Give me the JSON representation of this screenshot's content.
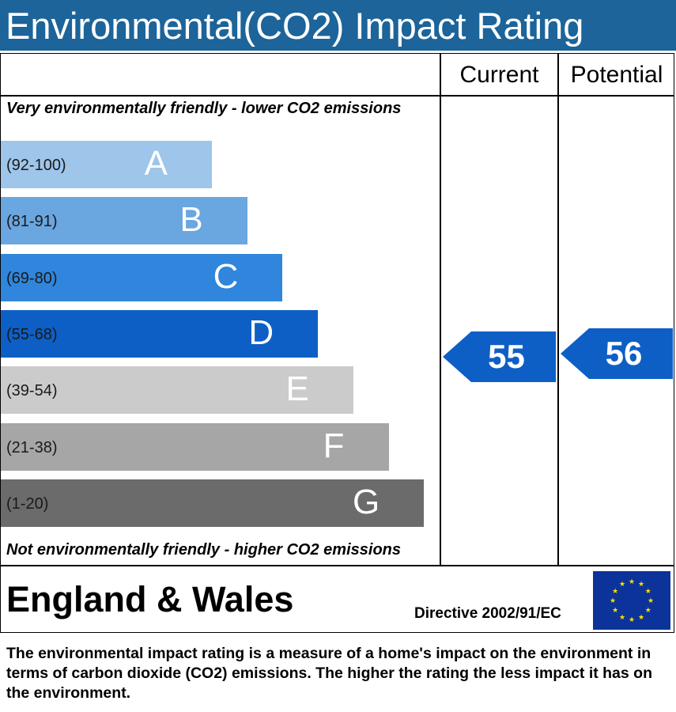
{
  "header": {
    "title": "Environmental(CO2) Impact Rating"
  },
  "columns": {
    "current": "Current",
    "potential": "Potential"
  },
  "edges": {
    "top": "Very environmentally friendly - lower CO2 emissions",
    "bottom": "Not environmentally friendly - higher CO2 emissions"
  },
  "chart_data": {
    "type": "bar",
    "title": "Environmental(CO2) Impact Rating",
    "bands": [
      {
        "letter": "A",
        "range": "(92-100)",
        "min": 92,
        "max": 100,
        "color": "#9ec5ea"
      },
      {
        "letter": "B",
        "range": "(81-91)",
        "min": 81,
        "max": 91,
        "color": "#6aa6e0"
      },
      {
        "letter": "C",
        "range": "(69-80)",
        "min": 69,
        "max": 80,
        "color": "#2f86dc"
      },
      {
        "letter": "D",
        "range": "(55-68)",
        "min": 55,
        "max": 68,
        "color": "#0d5fc6"
      },
      {
        "letter": "E",
        "range": "(39-54)",
        "min": 39,
        "max": 54,
        "color": "#cbcbcb"
      },
      {
        "letter": "F",
        "range": "(21-38)",
        "min": 21,
        "max": 38,
        "color": "#a6a6a6"
      },
      {
        "letter": "G",
        "range": "(1-20)",
        "min": 1,
        "max": 20,
        "color": "#6b6b6b"
      }
    ],
    "ratings": [
      {
        "column": "Current",
        "value": 55,
        "band": "D",
        "color": "#0d5fc6"
      },
      {
        "column": "Potential",
        "value": 56,
        "band": "D",
        "color": "#0d5fc6"
      }
    ]
  },
  "footer": {
    "country": "England & Wales",
    "directive": "Directive 2002/91/EC",
    "description": "The environmental impact rating is a measure of a home's impact on the environment in terms of carbon dioxide (CO2) emissions. The higher the rating the less impact it has on the environment.",
    "flag": {
      "icon": "eu-flag-icon",
      "background": "#0c3399",
      "stars": "#ffdd00"
    }
  }
}
